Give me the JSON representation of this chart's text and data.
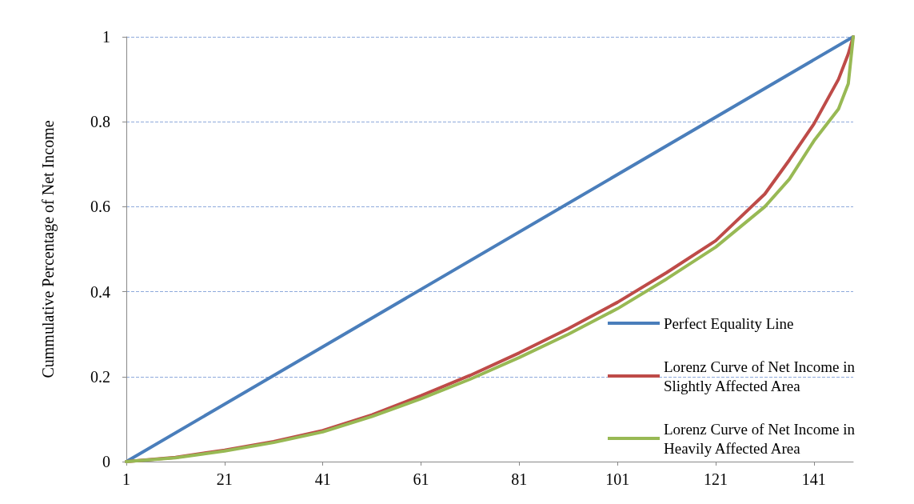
{
  "chart_data": {
    "type": "line",
    "ylabel": "Cummulative Percentage of Net Income",
    "xlim": [
      1,
      149
    ],
    "xticks": [
      1,
      21,
      41,
      61,
      81,
      101,
      121,
      141
    ],
    "ylim": [
      0,
      1
    ],
    "yticks": [
      0,
      0.2,
      0.4,
      0.6,
      0.8,
      1
    ],
    "grid": "y",
    "legend": "bottom right",
    "marker": "none",
    "line_style": "solid",
    "series": [
      {
        "name": "Perfect Equality Line",
        "color": "#4a7ebb",
        "x": [
          1,
          149
        ],
        "values": [
          0,
          1
        ]
      },
      {
        "name": "Lorenz Curve of Net Income in Slightly Affected Area",
        "color": "#be4b48",
        "x": [
          1,
          11,
          21,
          31,
          41,
          51,
          61,
          71,
          81,
          91,
          101,
          111,
          121,
          131,
          136,
          141,
          146,
          148,
          149
        ],
        "values": [
          0,
          0.01,
          0.027,
          0.047,
          0.073,
          0.11,
          0.155,
          0.203,
          0.256,
          0.313,
          0.375,
          0.445,
          0.52,
          0.63,
          0.71,
          0.795,
          0.9,
          0.96,
          1
        ]
      },
      {
        "name": "Lorenz Curve of Net Income in Heavily Affected Area",
        "color": "#98b954",
        "x": [
          1,
          11,
          21,
          31,
          41,
          51,
          61,
          71,
          81,
          91,
          101,
          111,
          121,
          131,
          136,
          141,
          146,
          148,
          149
        ],
        "values": [
          0,
          0.009,
          0.025,
          0.045,
          0.07,
          0.106,
          0.148,
          0.194,
          0.245,
          0.3,
          0.36,
          0.43,
          0.505,
          0.6,
          0.665,
          0.755,
          0.83,
          0.89,
          1
        ]
      }
    ]
  }
}
